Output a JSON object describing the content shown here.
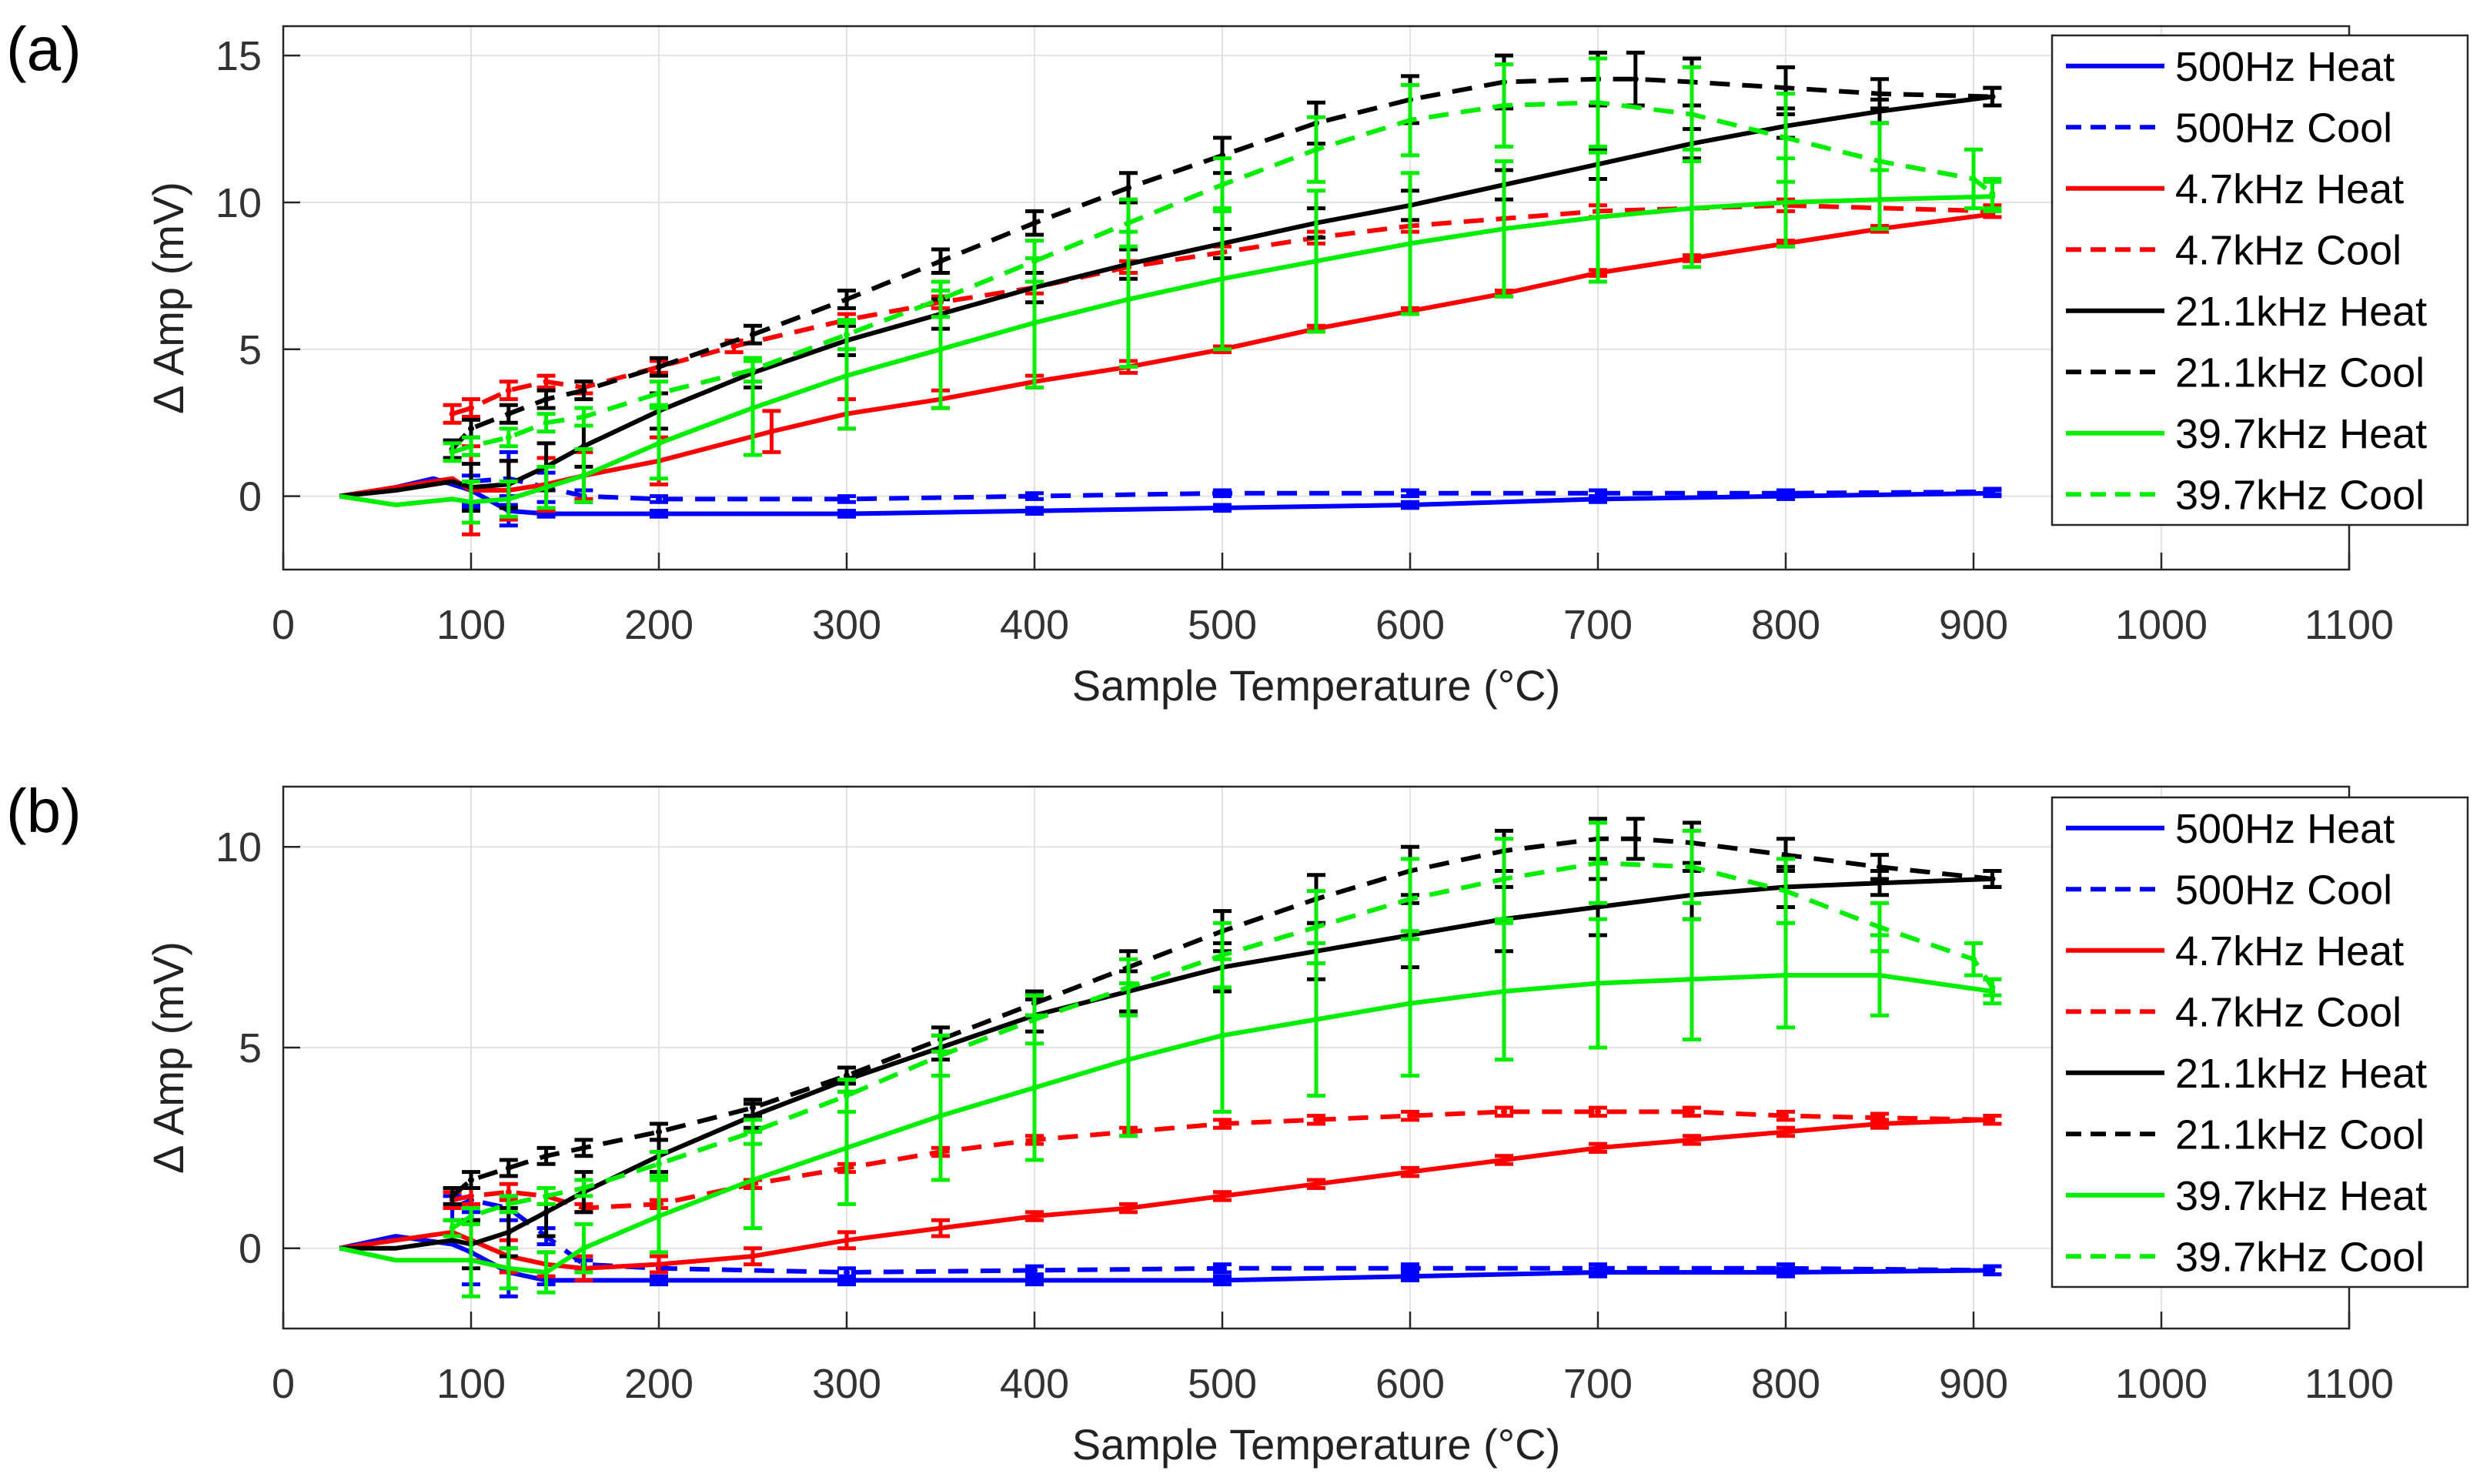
{
  "chart_data": [
    {
      "type": "line",
      "panel_label": "(a)",
      "xlabel": "Sample Temperature (°C)",
      "ylabel": "Δ Amp (mV)",
      "xlim": [
        0,
        1100
      ],
      "ylim": [
        -2.5,
        16
      ],
      "xticks": [
        0,
        100,
        200,
        300,
        400,
        500,
        600,
        700,
        800,
        900,
        1000,
        1100
      ],
      "yticks": [
        0,
        5,
        10,
        15
      ],
      "grid": true,
      "legend_position": "top-right",
      "series": [
        {
          "name": "500Hz Heat",
          "color": "#0000ff",
          "dash": "solid",
          "x": [
            30,
            60,
            80,
            100,
            120,
            140,
            200,
            300,
            400,
            500,
            600,
            700,
            800,
            910
          ],
          "y": [
            0,
            0.3,
            0.6,
            0.2,
            -0.5,
            -0.6,
            -0.6,
            -0.6,
            -0.5,
            -0.4,
            -0.3,
            -0.1,
            0.0,
            0.1
          ],
          "err": [
            0,
            0,
            0,
            0.5,
            0.5,
            0.1,
            0.1,
            0.1,
            0.1,
            0.1,
            0.1,
            0.1,
            0.1,
            0.1
          ]
        },
        {
          "name": "500Hz Cool",
          "color": "#0000ff",
          "dash": "dashed",
          "x": [
            100,
            120,
            140,
            160,
            200,
            300,
            400,
            500,
            600,
            700,
            800,
            910
          ],
          "y": [
            0.5,
            0.6,
            0.3,
            0.0,
            -0.1,
            -0.1,
            0.0,
            0.1,
            0.1,
            0.1,
            0.1,
            0.15
          ],
          "err": [
            0.9,
            0.9,
            0.5,
            0.2,
            0.1,
            0.1,
            0.1,
            0.1,
            0.1,
            0.1,
            0.1,
            0.1
          ]
        },
        {
          "name": "4.7kHz Heat",
          "color": "#ff0000",
          "dash": "solid",
          "x": [
            30,
            60,
            90,
            100,
            120,
            140,
            160,
            200,
            260,
            300,
            350,
            400,
            450,
            500,
            550,
            600,
            650,
            700,
            750,
            800,
            850,
            910
          ],
          "y": [
            0,
            0.3,
            0.6,
            0.2,
            0.2,
            0.4,
            0.7,
            1.2,
            2.2,
            2.8,
            3.3,
            3.9,
            4.4,
            5.0,
            5.7,
            6.3,
            6.9,
            7.6,
            8.1,
            8.6,
            9.1,
            9.6
          ],
          "err": [
            0,
            0,
            0,
            1.5,
            1.0,
            0.9,
            0.8,
            0.8,
            0.7,
            0.5,
            0.3,
            0.2,
            0.2,
            0.1,
            0.1,
            0.1,
            0.1,
            0.1,
            0.1,
            0.1,
            0.1,
            0.1
          ]
        },
        {
          "name": "4.7kHz Cool",
          "color": "#ff0000",
          "dash": "dashed",
          "x": [
            90,
            100,
            120,
            140,
            160,
            200,
            240,
            300,
            350,
            400,
            450,
            500,
            550,
            600,
            700,
            800,
            910
          ],
          "y": [
            2.8,
            3.0,
            3.6,
            3.9,
            3.7,
            4.4,
            5.1,
            6.0,
            6.6,
            7.1,
            7.8,
            8.3,
            8.8,
            9.2,
            9.7,
            9.9,
            9.7
          ],
          "err": [
            0.3,
            0.3,
            0.3,
            0.2,
            0.2,
            0.2,
            0.2,
            0.2,
            0.2,
            0.2,
            0.2,
            0.2,
            0.2,
            0.2,
            0.2,
            0.2,
            0.2
          ]
        },
        {
          "name": "21.1kHz Heat",
          "color": "#000000",
          "dash": "solid",
          "x": [
            30,
            60,
            90,
            100,
            120,
            140,
            160,
            200,
            250,
            300,
            350,
            400,
            450,
            500,
            550,
            600,
            650,
            700,
            750,
            800,
            850,
            910
          ],
          "y": [
            0,
            0.2,
            0.5,
            0.3,
            0.4,
            1.0,
            1.7,
            2.9,
            4.2,
            5.3,
            6.2,
            7.1,
            7.9,
            8.6,
            9.3,
            9.9,
            10.6,
            11.3,
            12.0,
            12.6,
            13.1,
            13.6
          ],
          "err": [
            0,
            0,
            0,
            0.8,
            0.8,
            0.8,
            0.7,
            0.6,
            0.5,
            0.5,
            0.5,
            0.5,
            0.5,
            0.5,
            0.5,
            0.5,
            0.5,
            0.5,
            0.5,
            0.4,
            0.4,
            0.3
          ]
        },
        {
          "name": "21.1kHz Cool",
          "color": "#000000",
          "dash": "dashed",
          "x": [
            90,
            100,
            120,
            140,
            160,
            200,
            250,
            300,
            350,
            400,
            450,
            500,
            550,
            600,
            650,
            700,
            720,
            750,
            800,
            850,
            910
          ],
          "y": [
            1.6,
            2.3,
            2.8,
            3.3,
            3.6,
            4.4,
            5.5,
            6.7,
            8.0,
            9.3,
            10.5,
            11.6,
            12.7,
            13.5,
            14.1,
            14.2,
            14.2,
            14.1,
            13.9,
            13.7,
            13.6
          ],
          "err": [
            0.3,
            0.3,
            0.3,
            0.3,
            0.3,
            0.3,
            0.3,
            0.3,
            0.4,
            0.4,
            0.5,
            0.6,
            0.7,
            0.8,
            0.9,
            0.9,
            0.9,
            0.8,
            0.7,
            0.5,
            0.3
          ]
        },
        {
          "name": "39.7kHz Heat",
          "color": "#00ee00",
          "dash": "solid",
          "x": [
            30,
            60,
            90,
            100,
            120,
            140,
            160,
            200,
            250,
            300,
            350,
            400,
            450,
            500,
            550,
            600,
            650,
            700,
            750,
            800,
            850,
            910
          ],
          "y": [
            0,
            -0.3,
            -0.1,
            -0.2,
            -0.1,
            0.3,
            0.7,
            1.8,
            3.0,
            4.1,
            5.0,
            5.9,
            6.7,
            7.4,
            8.0,
            8.6,
            9.1,
            9.5,
            9.8,
            10.0,
            10.1,
            10.2
          ],
          "err": [
            0,
            0,
            0,
            0.7,
            0.6,
            0.7,
            0.9,
            1.2,
            1.6,
            1.8,
            2.0,
            2.2,
            2.3,
            2.4,
            2.4,
            2.4,
            2.3,
            2.2,
            2.0,
            1.5,
            1.0,
            0.5
          ]
        },
        {
          "name": "39.7kHz Cool",
          "color": "#00ee00",
          "dash": "dashed",
          "x": [
            90,
            100,
            120,
            140,
            160,
            200,
            250,
            300,
            350,
            400,
            450,
            500,
            550,
            600,
            650,
            700,
            750,
            800,
            850,
            900,
            910
          ],
          "y": [
            1.5,
            1.7,
            2.0,
            2.5,
            2.7,
            3.5,
            4.3,
            5.5,
            6.7,
            8.0,
            9.3,
            10.6,
            11.8,
            12.8,
            13.3,
            13.4,
            13.0,
            12.2,
            11.4,
            10.8,
            10.3
          ],
          "err": [
            0.3,
            0.3,
            0.3,
            0.3,
            0.3,
            0.4,
            0.4,
            0.5,
            0.6,
            0.7,
            0.8,
            0.9,
            1.1,
            1.2,
            1.4,
            1.5,
            1.6,
            1.5,
            1.3,
            1.0,
            0.5
          ]
        }
      ]
    },
    {
      "type": "line",
      "panel_label": "(b)",
      "xlabel": "Sample Temperature (°C)",
      "ylabel": "Δ Amp (mV)",
      "xlim": [
        0,
        1100
      ],
      "ylim": [
        -2,
        11.5
      ],
      "xticks": [
        0,
        100,
        200,
        300,
        400,
        500,
        600,
        700,
        800,
        900,
        1000,
        1100
      ],
      "yticks": [
        0,
        5,
        10
      ],
      "grid": true,
      "legend_position": "top-right",
      "series": [
        {
          "name": "500Hz Heat",
          "color": "#0000ff",
          "dash": "solid",
          "x": [
            30,
            60,
            90,
            100,
            120,
            140,
            200,
            300,
            400,
            500,
            600,
            700,
            800,
            910
          ],
          "y": [
            0,
            0.3,
            0.1,
            -0.1,
            -0.6,
            -0.8,
            -0.8,
            -0.8,
            -0.8,
            -0.8,
            -0.7,
            -0.6,
            -0.6,
            -0.55
          ],
          "err": [
            0,
            0,
            0,
            0.8,
            0.6,
            0.1,
            0.1,
            0.1,
            0.1,
            0.1,
            0.1,
            0.1,
            0.1,
            0.1
          ]
        },
        {
          "name": "500Hz Cool",
          "color": "#0000ff",
          "dash": "dashed",
          "x": [
            90,
            100,
            120,
            140,
            160,
            200,
            300,
            400,
            500,
            600,
            700,
            800,
            910
          ],
          "y": [
            1.0,
            1.2,
            1.0,
            0.3,
            -0.4,
            -0.5,
            -0.6,
            -0.55,
            -0.5,
            -0.5,
            -0.5,
            -0.5,
            -0.55
          ],
          "err": [
            0.3,
            0.3,
            0.3,
            0.2,
            0.1,
            0.1,
            0.1,
            0.1,
            0.1,
            0.1,
            0.1,
            0.1,
            0.1
          ]
        },
        {
          "name": "4.7kHz Heat",
          "color": "#ff0000",
          "dash": "solid",
          "x": [
            30,
            60,
            90,
            100,
            120,
            140,
            160,
            200,
            250,
            300,
            350,
            400,
            450,
            500,
            550,
            600,
            650,
            700,
            750,
            800,
            850,
            910
          ],
          "y": [
            0,
            0.2,
            0.4,
            0.2,
            -0.2,
            -0.4,
            -0.5,
            -0.4,
            -0.2,
            0.2,
            0.5,
            0.8,
            1.0,
            1.3,
            1.6,
            1.9,
            2.2,
            2.5,
            2.7,
            2.9,
            3.1,
            3.2
          ],
          "err": [
            0,
            0,
            0,
            0.5,
            0.4,
            0.3,
            0.3,
            0.2,
            0.2,
            0.2,
            0.2,
            0.1,
            0.1,
            0.1,
            0.1,
            0.1,
            0.1,
            0.1,
            0.1,
            0.1,
            0.1,
            0.1
          ]
        },
        {
          "name": "4.7kHz Cool",
          "color": "#ff0000",
          "dash": "dashed",
          "x": [
            90,
            100,
            120,
            140,
            160,
            200,
            250,
            300,
            350,
            400,
            450,
            500,
            550,
            600,
            650,
            700,
            750,
            800,
            850,
            910
          ],
          "y": [
            1.2,
            1.3,
            1.4,
            1.3,
            1.0,
            1.1,
            1.6,
            2.0,
            2.4,
            2.7,
            2.9,
            3.1,
            3.2,
            3.3,
            3.4,
            3.4,
            3.4,
            3.3,
            3.25,
            3.2
          ],
          "err": [
            0.2,
            0.2,
            0.2,
            0.2,
            0.1,
            0.1,
            0.1,
            0.1,
            0.1,
            0.1,
            0.1,
            0.1,
            0.1,
            0.1,
            0.1,
            0.1,
            0.1,
            0.1,
            0.1,
            0.1
          ]
        },
        {
          "name": "21.1kHz Heat",
          "color": "#000000",
          "dash": "solid",
          "x": [
            30,
            60,
            90,
            100,
            120,
            140,
            160,
            200,
            250,
            300,
            350,
            400,
            450,
            500,
            550,
            600,
            650,
            700,
            750,
            800,
            850,
            910
          ],
          "y": [
            0,
            0.0,
            0.2,
            0.1,
            0.4,
            0.9,
            1.4,
            2.3,
            3.3,
            4.2,
            5.0,
            5.8,
            6.4,
            7.0,
            7.4,
            7.8,
            8.2,
            8.5,
            8.8,
            9.0,
            9.1,
            9.2
          ],
          "err": [
            0,
            0,
            0,
            0.6,
            0.6,
            0.6,
            0.5,
            0.4,
            0.3,
            0.3,
            0.3,
            0.4,
            0.5,
            0.6,
            0.7,
            0.8,
            0.8,
            0.7,
            0.6,
            0.5,
            0.3,
            0.2
          ]
        },
        {
          "name": "21.1kHz Cool",
          "color": "#000000",
          "dash": "dashed",
          "x": [
            90,
            100,
            120,
            140,
            160,
            200,
            250,
            300,
            350,
            400,
            450,
            500,
            550,
            600,
            650,
            700,
            720,
            750,
            800,
            850,
            910
          ],
          "y": [
            1.3,
            1.7,
            2.0,
            2.3,
            2.5,
            2.9,
            3.5,
            4.3,
            5.2,
            6.1,
            7.0,
            7.9,
            8.7,
            9.4,
            9.9,
            10.2,
            10.2,
            10.1,
            9.8,
            9.5,
            9.2
          ],
          "err": [
            0.2,
            0.2,
            0.2,
            0.2,
            0.2,
            0.2,
            0.2,
            0.2,
            0.3,
            0.3,
            0.4,
            0.5,
            0.6,
            0.6,
            0.5,
            0.5,
            0.5,
            0.5,
            0.4,
            0.3,
            0.2
          ]
        },
        {
          "name": "39.7kHz Heat",
          "color": "#00ee00",
          "dash": "solid",
          "x": [
            30,
            60,
            90,
            100,
            120,
            140,
            160,
            200,
            250,
            300,
            350,
            400,
            450,
            500,
            550,
            600,
            650,
            700,
            750,
            800,
            850,
            910
          ],
          "y": [
            0,
            -0.3,
            -0.3,
            -0.3,
            -0.5,
            -0.6,
            0.0,
            0.8,
            1.7,
            2.5,
            3.3,
            4.0,
            4.7,
            5.3,
            5.7,
            6.1,
            6.4,
            6.6,
            6.7,
            6.8,
            6.8,
            6.4
          ],
          "err": [
            0,
            0,
            0,
            0.9,
            0.5,
            0.5,
            0.6,
            0.9,
            1.2,
            1.4,
            1.6,
            1.8,
            1.9,
            1.9,
            1.9,
            1.8,
            1.7,
            1.6,
            1.5,
            1.3,
            1.0,
            0.3
          ]
        },
        {
          "name": "39.7kHz Cool",
          "color": "#00ee00",
          "dash": "dashed",
          "x": [
            90,
            100,
            120,
            140,
            160,
            200,
            250,
            300,
            350,
            400,
            450,
            500,
            550,
            600,
            650,
            700,
            750,
            800,
            850,
            900,
            910
          ],
          "y": [
            0.5,
            0.8,
            1.1,
            1.3,
            1.5,
            2.1,
            2.9,
            3.8,
            4.8,
            5.7,
            6.5,
            7.3,
            8.0,
            8.7,
            9.2,
            9.6,
            9.5,
            8.9,
            8.0,
            7.2,
            6.5
          ],
          "err": [
            0.2,
            0.2,
            0.2,
            0.2,
            0.2,
            0.3,
            0.3,
            0.4,
            0.5,
            0.6,
            0.7,
            0.8,
            0.9,
            1.0,
            1.0,
            1.0,
            0.9,
            0.8,
            0.6,
            0.4,
            0.2
          ]
        }
      ]
    }
  ]
}
